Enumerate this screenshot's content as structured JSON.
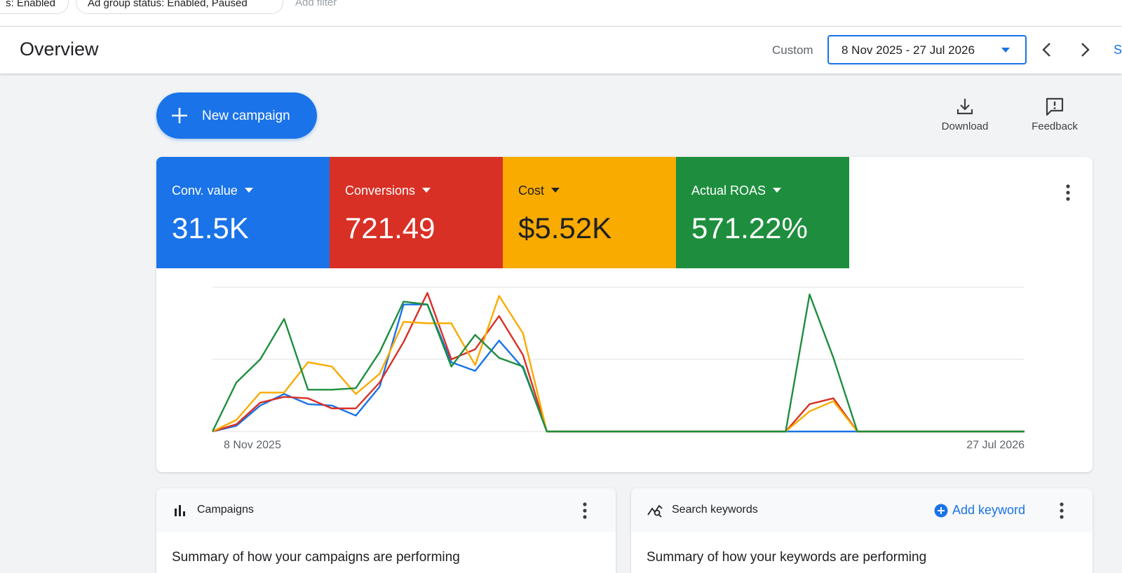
{
  "filters": {
    "chip_1": "s: Enabled",
    "chip_2": "Ad group status: Enabled, Paused",
    "add_filter": "Add filter"
  },
  "header": {
    "title": "Overview",
    "range_label": "Custom",
    "date_range": "8 Nov 2025 - 27 Jul 2026",
    "share_fragment": "S"
  },
  "actions": {
    "new_campaign": "New campaign",
    "download": "Download",
    "feedback": "Feedback"
  },
  "metrics": [
    {
      "label": "Conv. value",
      "value": "31.5K",
      "color": "#1a73e8"
    },
    {
      "label": "Conversions",
      "value": "721.49",
      "color": "#d93025"
    },
    {
      "label": "Cost",
      "value": "$5.52K",
      "color": "#f9ab00"
    },
    {
      "label": "Actual ROAS",
      "value": "571.22%",
      "color": "#1e8e3e"
    }
  ],
  "chart_data": {
    "type": "line",
    "x_start_label": "8 Nov 2025",
    "x_end_label": "27 Jul 2026",
    "ylim": [
      0,
      100
    ],
    "grid": true,
    "series": [
      {
        "color": "#1a73e8",
        "values": [
          0,
          4,
          18,
          26,
          19,
          18,
          11,
          31,
          88,
          88,
          48,
          42,
          63,
          44,
          0,
          0,
          0,
          0,
          0,
          0,
          0,
          0,
          0,
          0,
          0,
          0,
          0,
          0,
          0,
          0,
          0,
          0,
          0,
          0,
          0
        ]
      },
      {
        "color": "#d93025",
        "values": [
          0,
          5,
          20,
          24,
          23,
          16,
          16,
          34,
          62,
          96,
          50,
          57,
          80,
          53,
          0,
          0,
          0,
          0,
          0,
          0,
          0,
          0,
          0,
          0,
          0,
          19,
          23,
          0,
          0,
          0,
          0,
          0,
          0,
          0,
          0
        ]
      },
      {
        "color": "#f9ab00",
        "values": [
          0,
          8,
          27,
          27,
          48,
          45,
          26,
          40,
          76,
          75,
          75,
          46,
          94,
          68,
          0,
          0,
          0,
          0,
          0,
          0,
          0,
          0,
          0,
          0,
          0,
          14,
          21,
          0,
          0,
          0,
          0,
          0,
          0,
          0,
          0
        ]
      },
      {
        "color": "#1e8e3e",
        "values": [
          0,
          34,
          50,
          78,
          29,
          29,
          30,
          55,
          90,
          88,
          45,
          67,
          51,
          45,
          0,
          0,
          0,
          0,
          0,
          0,
          0,
          0,
          0,
          0,
          0,
          95,
          51,
          0,
          0,
          0,
          0,
          0,
          0,
          0,
          0
        ]
      }
    ]
  },
  "campaigns_card": {
    "title": "Campaigns",
    "summary": "Summary of how your campaigns are performing"
  },
  "keywords_card": {
    "title": "Search keywords",
    "add_keyword": "Add keyword",
    "summary": "Summary of how your keywords are performing"
  }
}
